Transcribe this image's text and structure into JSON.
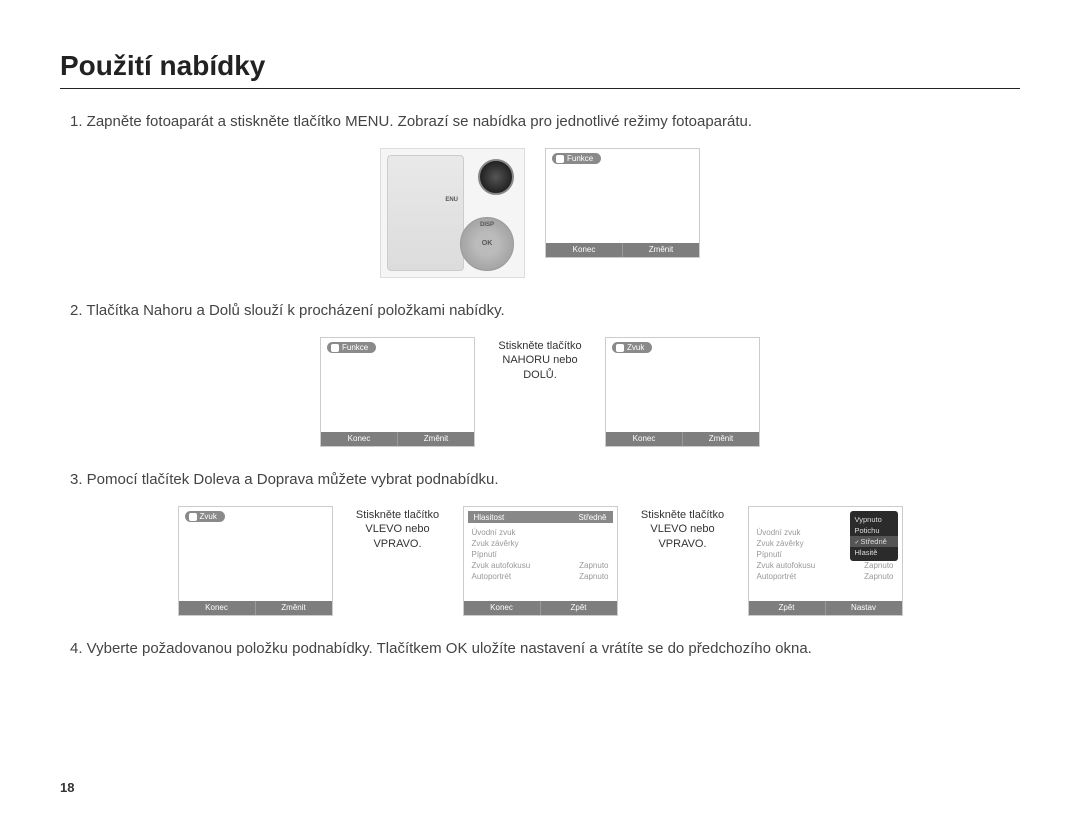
{
  "page": {
    "title": "Použití nabídky",
    "number": "18",
    "steps": {
      "s1": "1. Zapněte fotoaparát a stiskněte tlačítko MENU. Zobrazí se nabídka pro jednotlivé režimy fotoaparátu.",
      "s2": "2. Tlačítka Nahoru a Dolů slouží k procházení položkami nabídky.",
      "s3": "3. Pomocí tlačítek Doleva a Doprava můžete vybrat podnabídku.",
      "s4": "4. Vyberte požadovanou položku podnabídky. Tlačítkem OK uložíte nastavení a vrátíte se do předchozího okna."
    },
    "captions": {
      "updown": "Stiskněte tlačítko NAHORU nebo DOLŮ.",
      "leftright1": "Stiskněte tlačítko VLEVO nebo VPRAVO.",
      "leftright2": "Stiskněte tlačítko VLEVO nebo VPRAVO."
    },
    "panel_common": {
      "footer_konec": "Konec",
      "footer_zmenit": "Změnit",
      "footer_zpet": "Zpět",
      "footer_nastav": "Nastav",
      "header_funkce": "Funkce",
      "header_zvuk": "Zvuk"
    },
    "panel_selbar": {
      "left": "Hlasitost",
      "right": "Středně"
    },
    "panel_options": {
      "o1": {
        "label": "Úvodní zvuk",
        "value": ""
      },
      "o2": {
        "label": "Zvuk závěrky",
        "value": ""
      },
      "o3": {
        "label": "Pípnutí",
        "value": ""
      },
      "o4": {
        "label": "Zvuk autofokusu",
        "value": "Zapnuto"
      },
      "o5": {
        "label": "Autoportrét",
        "value": "Zapnuto"
      }
    },
    "popup": {
      "p1": "Vypnuto",
      "p2": "Potichu",
      "p3": "Středně",
      "p4": "Hlasitě"
    },
    "camera": {
      "ok": "OK",
      "disp": "DISP",
      "menu": "ENU"
    }
  }
}
